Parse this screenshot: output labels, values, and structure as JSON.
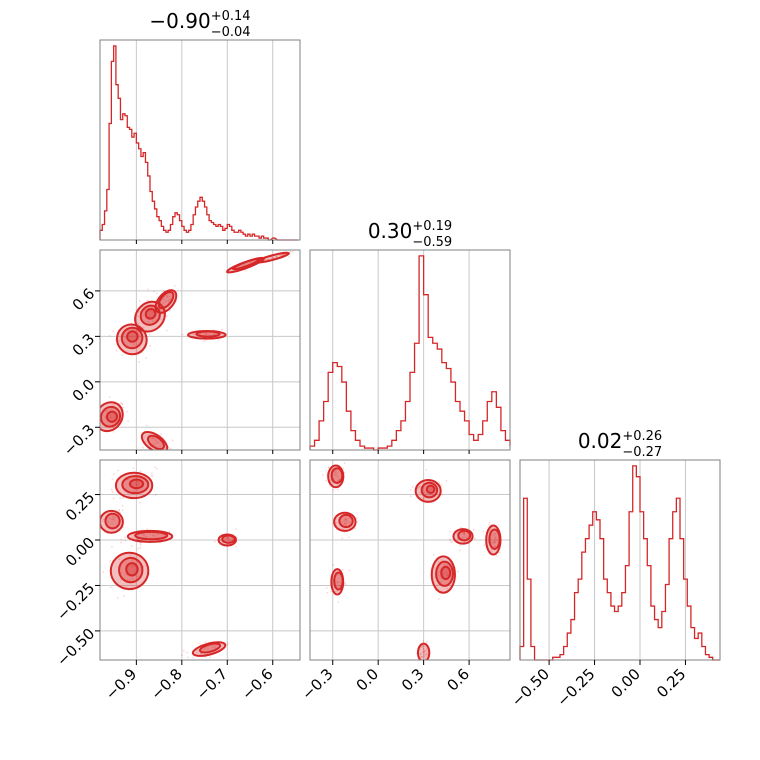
{
  "chart_data": {
    "type": "corner",
    "color": "#d62728",
    "grid": true,
    "parameters": [
      {
        "id": "p0",
        "median": "−0.90",
        "plus": "+0.14",
        "minus": "−0.04",
        "range": [
          -0.98,
          -0.54
        ],
        "ticks": [
          -0.9,
          -0.8,
          -0.7,
          -0.6
        ],
        "tick_labels": [
          "−0.9",
          "−0.8",
          "−0.7",
          "−0.6"
        ]
      },
      {
        "id": "p1",
        "median": "0.30",
        "plus": "+0.19",
        "minus": "−0.59",
        "range": [
          -0.45,
          0.87
        ],
        "ticks": [
          -0.3,
          0.0,
          0.3,
          0.6
        ],
        "tick_labels": [
          "−0.3",
          "0.0",
          "0.3",
          "0.6"
        ]
      },
      {
        "id": "p2",
        "median": "0.02",
        "plus": "+0.26",
        "minus": "−0.27",
        "range": [
          -0.66,
          0.44
        ],
        "ticks": [
          -0.5,
          -0.25,
          0.0,
          0.25
        ],
        "tick_labels": [
          "−0.50",
          "−0.25",
          "0.00",
          "0.25"
        ]
      }
    ],
    "histograms": [
      {
        "param": "p0",
        "x": [
          -0.98,
          -0.975,
          -0.97,
          -0.965,
          -0.96,
          -0.955,
          -0.95,
          -0.945,
          -0.94,
          -0.935,
          -0.93,
          -0.925,
          -0.92,
          -0.915,
          -0.91,
          -0.905,
          -0.9,
          -0.895,
          -0.89,
          -0.885,
          -0.88,
          -0.875,
          -0.87,
          -0.865,
          -0.86,
          -0.855,
          -0.85,
          -0.845,
          -0.84,
          -0.835,
          -0.83,
          -0.825,
          -0.82,
          -0.815,
          -0.81,
          -0.805,
          -0.8,
          -0.795,
          -0.79,
          -0.785,
          -0.78,
          -0.775,
          -0.77,
          -0.765,
          -0.76,
          -0.755,
          -0.75,
          -0.745,
          -0.74,
          -0.735,
          -0.73,
          -0.725,
          -0.72,
          -0.715,
          -0.71,
          -0.705,
          -0.7,
          -0.695,
          -0.69,
          -0.685,
          -0.68,
          -0.675,
          -0.67,
          -0.665,
          -0.66,
          -0.655,
          -0.65,
          -0.645,
          -0.64,
          -0.635,
          -0.63,
          -0.625,
          -0.62,
          -0.615,
          -0.61,
          -0.6,
          -0.59,
          -0.58,
          -0.57,
          -0.56,
          -0.55
        ],
        "y": [
          0.05,
          0.08,
          0.15,
          0.26,
          0.6,
          0.92,
          1.0,
          0.8,
          0.73,
          0.62,
          0.65,
          0.64,
          0.58,
          0.57,
          0.53,
          0.55,
          0.5,
          0.47,
          0.43,
          0.45,
          0.4,
          0.33,
          0.25,
          0.2,
          0.16,
          0.12,
          0.1,
          0.07,
          0.05,
          0.04,
          0.05,
          0.08,
          0.12,
          0.14,
          0.13,
          0.1,
          0.07,
          0.05,
          0.04,
          0.05,
          0.08,
          0.13,
          0.17,
          0.2,
          0.22,
          0.2,
          0.17,
          0.13,
          0.1,
          0.09,
          0.08,
          0.07,
          0.08,
          0.07,
          0.05,
          0.06,
          0.08,
          0.07,
          0.05,
          0.04,
          0.04,
          0.05,
          0.04,
          0.03,
          0.02,
          0.03,
          0.02,
          0.03,
          0.02,
          0.02,
          0.01,
          0.02,
          0.01,
          0.01,
          0.0,
          0.01,
          0.0,
          0.0,
          0.0,
          0.0,
          0.0
        ]
      },
      {
        "param": "p1",
        "x": [
          -0.45,
          -0.42,
          -0.39,
          -0.36,
          -0.33,
          -0.3,
          -0.27,
          -0.24,
          -0.21,
          -0.18,
          -0.15,
          -0.12,
          -0.09,
          -0.06,
          -0.03,
          0.0,
          0.03,
          0.06,
          0.09,
          0.12,
          0.15,
          0.18,
          0.21,
          0.24,
          0.27,
          0.3,
          0.33,
          0.36,
          0.39,
          0.42,
          0.45,
          0.48,
          0.51,
          0.54,
          0.57,
          0.6,
          0.63,
          0.66,
          0.69,
          0.72,
          0.75,
          0.78,
          0.81,
          0.84,
          0.87
        ],
        "y": [
          0.02,
          0.05,
          0.15,
          0.25,
          0.4,
          0.45,
          0.43,
          0.35,
          0.2,
          0.1,
          0.05,
          0.02,
          0.01,
          0.01,
          0.0,
          0.01,
          0.01,
          0.02,
          0.05,
          0.1,
          0.15,
          0.25,
          0.4,
          0.55,
          1.0,
          0.8,
          0.58,
          0.55,
          0.52,
          0.45,
          0.42,
          0.35,
          0.25,
          0.2,
          0.15,
          0.08,
          0.05,
          0.08,
          0.15,
          0.25,
          0.3,
          0.22,
          0.1,
          0.05,
          0.02
        ]
      },
      {
        "param": "p2",
        "x": [
          -0.66,
          -0.64,
          -0.62,
          -0.6,
          -0.58,
          -0.56,
          -0.54,
          -0.52,
          -0.5,
          -0.48,
          -0.46,
          -0.44,
          -0.42,
          -0.4,
          -0.38,
          -0.36,
          -0.34,
          -0.32,
          -0.3,
          -0.28,
          -0.26,
          -0.24,
          -0.22,
          -0.2,
          -0.18,
          -0.16,
          -0.14,
          -0.12,
          -0.1,
          -0.08,
          -0.06,
          -0.04,
          -0.02,
          0.0,
          0.02,
          0.04,
          0.06,
          0.08,
          0.1,
          0.12,
          0.14,
          0.16,
          0.18,
          0.2,
          0.22,
          0.24,
          0.26,
          0.28,
          0.3,
          0.32,
          0.34,
          0.36,
          0.38,
          0.4,
          0.42,
          0.44
        ],
        "y": [
          0.05,
          0.6,
          0.3,
          0.05,
          0.0,
          0.0,
          0.0,
          0.0,
          0.0,
          0.01,
          0.01,
          0.02,
          0.05,
          0.1,
          0.15,
          0.25,
          0.3,
          0.4,
          0.45,
          0.5,
          0.55,
          0.52,
          0.45,
          0.3,
          0.25,
          0.2,
          0.18,
          0.2,
          0.25,
          0.35,
          0.55,
          0.72,
          0.68,
          0.55,
          0.45,
          0.35,
          0.2,
          0.15,
          0.12,
          0.18,
          0.28,
          0.45,
          0.55,
          0.6,
          0.45,
          0.3,
          0.2,
          0.12,
          0.08,
          0.1,
          0.05,
          0.02,
          0.01,
          0.0,
          0.0,
          0.0
        ]
      }
    ],
    "contours": [
      {
        "x": "p0",
        "y": "p1",
        "blobs": [
          {
            "center": [
              -0.91,
              0.28
            ],
            "radius": [
              0.032,
              0.1
            ],
            "angle": -45,
            "levels": 3
          },
          {
            "center": [
              -0.87,
              0.43
            ],
            "radius": [
              0.035,
              0.09
            ],
            "angle": -45,
            "levels": 3
          },
          {
            "center": [
              -0.835,
              0.53
            ],
            "radius": [
              0.03,
              0.05
            ],
            "angle": -50,
            "levels": 2
          },
          {
            "center": [
              -0.745,
              0.31
            ],
            "radius": [
              0.04,
              0.025
            ],
            "angle": 0,
            "levels": 2
          },
          {
            "center": [
              -0.66,
              0.77
            ],
            "radius": [
              0.045,
              0.02
            ],
            "angle": -20,
            "levels": 2
          },
          {
            "center": [
              -0.6,
              0.82
            ],
            "radius": [
              0.035,
              0.015
            ],
            "angle": -15,
            "levels": 1
          },
          {
            "center": [
              -0.96,
              -0.23
            ],
            "radius": [
              0.03,
              0.1
            ],
            "angle": 35,
            "levels": 3
          },
          {
            "center": [
              -0.86,
              -0.4
            ],
            "radius": [
              0.03,
              0.05
            ],
            "angle": 35,
            "levels": 2
          }
        ]
      },
      {
        "x": "p0",
        "y": "p2",
        "blobs": [
          {
            "center": [
              -0.905,
              0.3
            ],
            "radius": [
              0.04,
              0.07
            ],
            "angle": 0,
            "levels": 3
          },
          {
            "center": [
              -0.955,
              0.1
            ],
            "radius": [
              0.025,
              0.06
            ],
            "angle": 0,
            "levels": 2
          },
          {
            "center": [
              -0.87,
              0.02
            ],
            "radius": [
              0.05,
              0.03
            ],
            "angle": 0,
            "levels": 2
          },
          {
            "center": [
              -0.915,
              -0.17
            ],
            "radius": [
              0.04,
              0.1
            ],
            "angle": 0,
            "levels": 3
          },
          {
            "center": [
              -0.7,
              0.0
            ],
            "radius": [
              0.02,
              0.03
            ],
            "angle": 0,
            "levels": 2
          },
          {
            "center": [
              -0.74,
              -0.6
            ],
            "radius": [
              0.035,
              0.03
            ],
            "angle": -15,
            "levels": 2
          }
        ]
      },
      {
        "x": "p1",
        "y": "p2",
        "blobs": [
          {
            "center": [
              -0.28,
              0.35
            ],
            "radius": [
              0.05,
              0.06
            ],
            "angle": 0,
            "levels": 2
          },
          {
            "center": [
              -0.22,
              0.1
            ],
            "radius": [
              0.07,
              0.05
            ],
            "angle": 0,
            "levels": 2
          },
          {
            "center": [
              -0.27,
              -0.23
            ],
            "radius": [
              0.04,
              0.07
            ],
            "angle": 0,
            "levels": 2
          },
          {
            "center": [
              0.33,
              0.27
            ],
            "radius": [
              0.08,
              0.06
            ],
            "angle": 0,
            "levels": 3
          },
          {
            "center": [
              0.43,
              -0.19
            ],
            "radius": [
              0.08,
              0.1
            ],
            "angle": 0,
            "levels": 3
          },
          {
            "center": [
              0.56,
              0.02
            ],
            "radius": [
              0.06,
              0.04
            ],
            "angle": 0,
            "levels": 2
          },
          {
            "center": [
              0.76,
              0.0
            ],
            "radius": [
              0.05,
              0.08
            ],
            "angle": 0,
            "levels": 2
          },
          {
            "center": [
              0.3,
              -0.62
            ],
            "radius": [
              0.035,
              0.05
            ],
            "angle": 0,
            "levels": 1
          }
        ]
      }
    ]
  }
}
